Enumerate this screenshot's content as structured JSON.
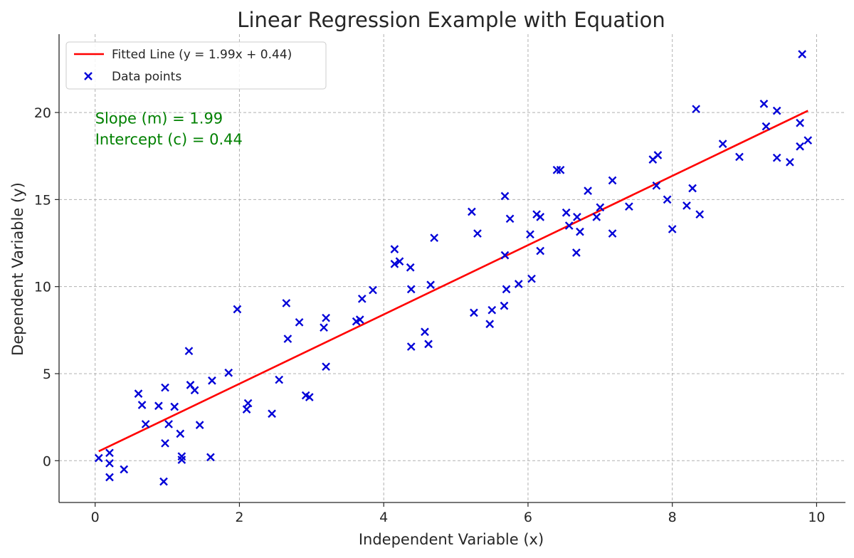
{
  "chart_data": {
    "type": "scatter",
    "title": "Linear Regression Example with Equation",
    "xlabel": "Independent Variable (x)",
    "ylabel": "Dependent Variable (y)",
    "xlim": [
      -0.5,
      10.4
    ],
    "ylim": [
      -2.4,
      24.5
    ],
    "xticks": [
      0,
      2,
      4,
      6,
      8,
      10
    ],
    "xtick_labels": [
      "0",
      "2",
      "4",
      "6",
      "8",
      "10"
    ],
    "yticks": [
      0,
      5,
      10,
      15,
      20
    ],
    "ytick_labels": [
      "0",
      "5",
      "10",
      "15",
      "20"
    ],
    "grid": true,
    "legend_position": "top-left",
    "series": [
      {
        "name": "Fitted Line (y = 1.99x + 0.44)",
        "kind": "line",
        "color": "#ff0000",
        "slope": 1.99,
        "intercept": 0.44,
        "x_range": [
          0.05,
          9.88
        ]
      },
      {
        "name": "Data points",
        "kind": "scatter",
        "marker": "x",
        "color": "#0000d8",
        "points": [
          [
            0.05,
            0.15
          ],
          [
            0.2,
            -0.15
          ],
          [
            0.2,
            0.45
          ],
          [
            0.2,
            -0.95
          ],
          [
            0.4,
            -0.5
          ],
          [
            0.6,
            3.85
          ],
          [
            0.65,
            3.2
          ],
          [
            0.7,
            2.1
          ],
          [
            0.88,
            3.15
          ],
          [
            0.95,
            -1.2
          ],
          [
            0.97,
            4.2
          ],
          [
            0.97,
            1.0
          ],
          [
            1.02,
            2.1
          ],
          [
            1.1,
            3.1
          ],
          [
            1.18,
            1.55
          ],
          [
            1.2,
            0.25
          ],
          [
            1.2,
            0.05
          ],
          [
            1.3,
            6.3
          ],
          [
            1.32,
            4.35
          ],
          [
            1.38,
            4.05
          ],
          [
            1.45,
            2.05
          ],
          [
            1.6,
            0.2
          ],
          [
            1.62,
            4.6
          ],
          [
            1.85,
            5.05
          ],
          [
            1.97,
            8.7
          ],
          [
            2.1,
            2.95
          ],
          [
            2.12,
            3.3
          ],
          [
            2.45,
            2.7
          ],
          [
            2.55,
            4.65
          ],
          [
            2.65,
            9.05
          ],
          [
            2.67,
            7.0
          ],
          [
            2.83,
            7.95
          ],
          [
            2.92,
            3.75
          ],
          [
            2.97,
            3.65
          ],
          [
            3.17,
            7.65
          ],
          [
            3.2,
            8.2
          ],
          [
            3.2,
            5.4
          ],
          [
            3.62,
            8.0
          ],
          [
            3.67,
            8.1
          ],
          [
            3.7,
            9.3
          ],
          [
            3.85,
            9.8
          ],
          [
            4.15,
            12.15
          ],
          [
            4.15,
            11.3
          ],
          [
            4.22,
            11.45
          ],
          [
            4.37,
            11.1
          ],
          [
            4.38,
            9.85
          ],
          [
            4.38,
            6.55
          ],
          [
            4.57,
            7.4
          ],
          [
            4.62,
            6.7
          ],
          [
            4.65,
            10.1
          ],
          [
            4.7,
            12.8
          ],
          [
            5.22,
            14.3
          ],
          [
            5.25,
            8.5
          ],
          [
            5.3,
            13.05
          ],
          [
            5.47,
            7.85
          ],
          [
            5.5,
            8.65
          ],
          [
            5.67,
            8.9
          ],
          [
            5.68,
            11.8
          ],
          [
            5.68,
            15.2
          ],
          [
            5.7,
            9.85
          ],
          [
            5.75,
            13.9
          ],
          [
            5.87,
            10.15
          ],
          [
            6.03,
            13.0
          ],
          [
            6.05,
            10.45
          ],
          [
            6.12,
            14.15
          ],
          [
            6.17,
            14.0
          ],
          [
            6.17,
            12.05
          ],
          [
            6.4,
            16.7
          ],
          [
            6.45,
            16.7
          ],
          [
            6.53,
            14.25
          ],
          [
            6.57,
            13.5
          ],
          [
            6.67,
            11.95
          ],
          [
            6.68,
            14.0
          ],
          [
            6.72,
            13.15
          ],
          [
            6.83,
            15.5
          ],
          [
            6.95,
            14.0
          ],
          [
            7.0,
            14.55
          ],
          [
            7.17,
            16.1
          ],
          [
            7.17,
            13.05
          ],
          [
            7.4,
            14.6
          ],
          [
            7.73,
            17.3
          ],
          [
            7.78,
            15.8
          ],
          [
            7.8,
            17.55
          ],
          [
            7.93,
            15.0
          ],
          [
            8.0,
            13.3
          ],
          [
            8.2,
            14.65
          ],
          [
            8.28,
            15.65
          ],
          [
            8.33,
            20.2
          ],
          [
            8.38,
            14.15
          ],
          [
            8.7,
            18.2
          ],
          [
            8.93,
            17.45
          ],
          [
            9.27,
            20.5
          ],
          [
            9.3,
            19.2
          ],
          [
            9.45,
            20.1
          ],
          [
            9.45,
            17.4
          ],
          [
            9.63,
            17.15
          ],
          [
            9.77,
            19.4
          ],
          [
            9.77,
            18.05
          ],
          [
            9.8,
            23.35
          ],
          [
            9.88,
            18.4
          ]
        ]
      }
    ],
    "annotations": [
      {
        "text": "Slope (m) = 1.99",
        "x": 0.0,
        "y": 19.0,
        "color": "#008000"
      },
      {
        "text": "Intercept (c) = 0.44",
        "x": 0.0,
        "y": 18.4,
        "color": "#008000"
      }
    ]
  }
}
